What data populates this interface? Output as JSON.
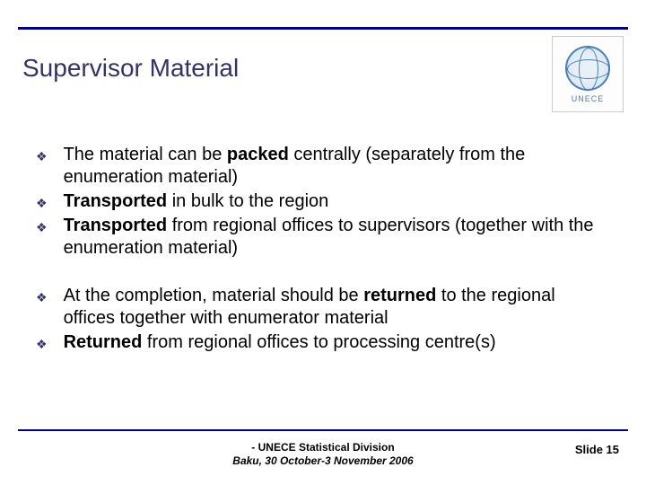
{
  "title": "Supervisor Material",
  "logo": {
    "label": "UNECE"
  },
  "groups": [
    {
      "items": [
        {
          "pre": "The material can be ",
          "bold": "packed",
          "post": " centrally (separately from the enumeration material)"
        },
        {
          "pre": "",
          "bold": "Transported",
          "post": " in bulk to the region"
        },
        {
          "pre": "",
          "bold": "Transported",
          "post": " from regional offices to supervisors (together with the enumeration material)"
        }
      ]
    },
    {
      "items": [
        {
          "pre": "At the completion, material should be ",
          "bold": "returned",
          "post": " to the regional offices together with enumerator material"
        },
        {
          "pre": "",
          "bold": "Returned",
          "post": " from regional offices to processing centre(s)"
        }
      ]
    }
  ],
  "footer": {
    "line1": " - UNECE Statistical Division",
    "line2": "Baku, 30 October-3 November 2006"
  },
  "slide": "Slide 15",
  "colors": {
    "rule": "#000080",
    "title": "#333366",
    "background": "#ffffff"
  }
}
